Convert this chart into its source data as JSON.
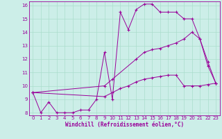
{
  "xlabel": "Windchill (Refroidissement éolien,°C)",
  "bg_color": "#cceee8",
  "grid_color": "#aaddcc",
  "line_color": "#990099",
  "xlim": [
    -0.5,
    23.5
  ],
  "ylim": [
    7.8,
    16.3
  ],
  "xticks": [
    0,
    1,
    2,
    3,
    4,
    5,
    6,
    7,
    8,
    9,
    10,
    11,
    12,
    13,
    14,
    15,
    16,
    17,
    18,
    19,
    20,
    21,
    22,
    23
  ],
  "yticks": [
    8,
    9,
    10,
    11,
    12,
    13,
    14,
    15,
    16
  ],
  "line1_x": [
    0,
    1,
    2,
    3,
    4,
    5,
    6,
    7,
    8,
    9,
    10,
    11,
    12,
    13,
    14,
    15,
    16,
    17,
    18,
    19,
    20,
    21,
    22,
    23
  ],
  "line1_y": [
    9.5,
    8.0,
    8.8,
    8.0,
    8.0,
    8.0,
    8.2,
    8.2,
    9.0,
    12.5,
    9.0,
    15.5,
    14.2,
    15.7,
    16.1,
    16.1,
    15.5,
    15.5,
    15.5,
    15.0,
    15.0,
    13.5,
    11.8,
    10.2
  ],
  "line1_markers": [
    0,
    1,
    2,
    3,
    4,
    5,
    6,
    7,
    8,
    9,
    10,
    11,
    12,
    13,
    14,
    15,
    16,
    17,
    18,
    19,
    20,
    21,
    22,
    23
  ],
  "line2_x": [
    0,
    9,
    10,
    13,
    14,
    15,
    16,
    17,
    18,
    19,
    20,
    21,
    22,
    23
  ],
  "line2_y": [
    9.5,
    10.0,
    10.5,
    12.0,
    12.5,
    12.7,
    12.8,
    13.0,
    13.2,
    13.5,
    14.0,
    13.5,
    11.5,
    10.2
  ],
  "line3_x": [
    0,
    9,
    10,
    11,
    12,
    13,
    14,
    15,
    16,
    17,
    18,
    19,
    20,
    21,
    22,
    23
  ],
  "line3_y": [
    9.5,
    9.2,
    9.5,
    9.8,
    10.0,
    10.3,
    10.5,
    10.6,
    10.7,
    10.8,
    10.8,
    10.0,
    10.0,
    10.0,
    10.1,
    10.2
  ]
}
